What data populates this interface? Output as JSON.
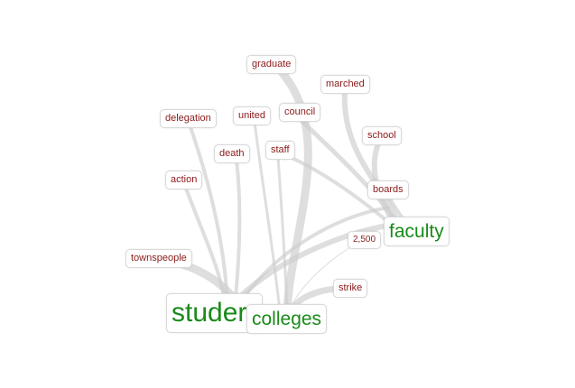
{
  "graph": {
    "colors": {
      "term": "#8b1a1a",
      "hub": "#1a8a1a",
      "edge": "#cccccc"
    },
    "nodes": [
      {
        "id": "graduate",
        "label": "graduate",
        "kind": "term"
      },
      {
        "id": "marched",
        "label": "marched",
        "kind": "term"
      },
      {
        "id": "delegation",
        "label": "delegation",
        "kind": "term"
      },
      {
        "id": "united",
        "label": "united",
        "kind": "term"
      },
      {
        "id": "council",
        "label": "council",
        "kind": "term"
      },
      {
        "id": "school",
        "label": "school",
        "kind": "term"
      },
      {
        "id": "death",
        "label": "death",
        "kind": "term"
      },
      {
        "id": "staff",
        "label": "staff",
        "kind": "term"
      },
      {
        "id": "action",
        "label": "action",
        "kind": "term"
      },
      {
        "id": "boards",
        "label": "boards",
        "kind": "term"
      },
      {
        "id": "n2500",
        "label": "2,500",
        "kind": "term"
      },
      {
        "id": "faculty",
        "label": "faculty",
        "kind": "hub"
      },
      {
        "id": "townspeople",
        "label": "townspeople",
        "kind": "term"
      },
      {
        "id": "strike",
        "label": "strike",
        "kind": "term"
      },
      {
        "id": "students",
        "label": "studer",
        "kind": "hub"
      },
      {
        "id": "colleges",
        "label": "colleges",
        "kind": "hub"
      }
    ]
  }
}
